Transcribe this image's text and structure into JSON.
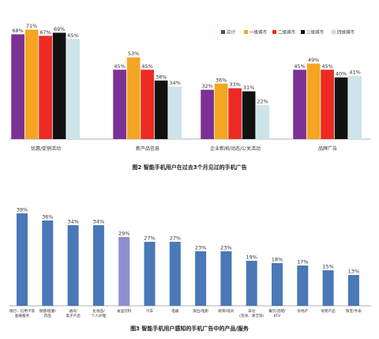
{
  "chart_data": [
    {
      "type": "bar",
      "title": "图2 智能手机用户在过去3个月见过的手机广告",
      "categories": [
        "优惠/促销活动",
        "新产品信息",
        "企业新闻/动态/公关活动",
        "品牌广告"
      ],
      "series": [
        {
          "name": "总计",
          "color": "#7b3294",
          "values": [
            68,
            45,
            32,
            45
          ]
        },
        {
          "name": "一级城市",
          "color": "#f4a622",
          "values": [
            71,
            53,
            36,
            49
          ]
        },
        {
          "name": "二级城市",
          "color": "#ee2a24",
          "values": [
            67,
            45,
            33,
            45
          ]
        },
        {
          "name": "三级城市",
          "color": "#111111",
          "values": [
            69,
            38,
            31,
            40
          ]
        },
        {
          "name": "四级城市",
          "color": "#cde4ea",
          "values": [
            65,
            34,
            22,
            41
          ]
        }
      ],
      "value_labels": [
        [
          "68%",
          "71%",
          "67%",
          "69%",
          "65%"
        ],
        [
          "45%",
          "53%",
          "45%",
          "38%",
          "34%"
        ],
        [
          "32%",
          "36%",
          "33%",
          "31%",
          "22%"
        ],
        [
          "45%",
          "49%",
          "45%",
          "40%",
          "41%"
        ]
      ],
      "legend_position": "top-right",
      "ylim": [
        0,
        80
      ],
      "grid": false
    },
    {
      "type": "bar",
      "title": "图3 智能手机用户感知的手机广告中的产品/服务",
      "categories": [
        [
          "银行、信用卡等",
          "金融服务"
        ],
        [
          "保健/脏腑/",
          "药品"
        ],
        [
          "通讯/",
          "电子产品"
        ],
        [
          "化妆品/",
          "个人护理"
        ],
        [
          "食品饮料"
        ],
        [
          "汽车"
        ],
        [
          "电器"
        ],
        [
          "演出/电影"
        ],
        [
          "教育/培训"
        ],
        [
          "日化",
          "(洗涤、清洁等)"
        ],
        [
          "餐饮/酒吧/",
          "KTV"
        ],
        [
          "房地产"
        ],
        [
          "母婴产品"
        ],
        [
          "珠宝/手表"
        ]
      ],
      "values": [
        39,
        36,
        34,
        34,
        29,
        27,
        27,
        23,
        23,
        19,
        18,
        17,
        15,
        13
      ],
      "value_labels": [
        "39%",
        "36%",
        "34%",
        "34%",
        "29%",
        "27%",
        "27%",
        "23%",
        "23%",
        "19%",
        "18%",
        "17%",
        "15%",
        "13%"
      ],
      "colors": [
        "#4a78b8",
        "#4a78b8",
        "#4a78b8",
        "#4a78b8",
        "#8a8fd0",
        "#4a78b8",
        "#4a78b8",
        "#4a78b8",
        "#4a78b8",
        "#4a78b8",
        "#4a78b8",
        "#4a78b8",
        "#4a78b8",
        "#4a78b8"
      ],
      "ylim": [
        0,
        45
      ],
      "grid": false
    }
  ]
}
